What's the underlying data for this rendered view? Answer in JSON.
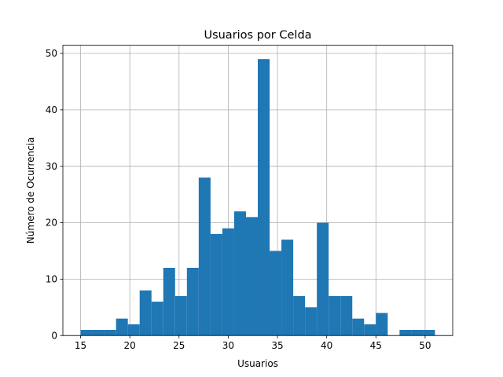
{
  "chart_data": {
    "type": "bar",
    "title": "Usuarios por Celda",
    "xlabel": "Usuarios",
    "ylabel": "Número de Ocurrencia",
    "xlim": [
      13.2,
      52.8
    ],
    "ylim": [
      0,
      51.45
    ],
    "x_ticks": [
      "15",
      "20",
      "25",
      "30",
      "35",
      "40",
      "45",
      "50"
    ],
    "y_ticks": [
      "0",
      "10",
      "20",
      "30",
      "40",
      "50"
    ],
    "grid": true,
    "bar_color": "#1f77b4",
    "bin_edges": [
      15,
      16.2,
      17.4,
      18.6,
      19.8,
      21,
      22.2,
      23.4,
      24.6,
      25.8,
      27,
      28.2,
      29.4,
      30.6,
      31.8,
      33,
      34.2,
      35.4,
      36.6,
      37.8,
      39,
      40.2,
      41.4,
      42.6,
      43.8,
      45,
      46.2,
      47.4,
      48.6,
      49.8,
      51
    ],
    "values": [
      1,
      1,
      1,
      3,
      2,
      8,
      6,
      12,
      7,
      12,
      28,
      18,
      19,
      22,
      21,
      49,
      15,
      17,
      7,
      5,
      20,
      7,
      7,
      3,
      2,
      4,
      0,
      1,
      1,
      1
    ]
  }
}
